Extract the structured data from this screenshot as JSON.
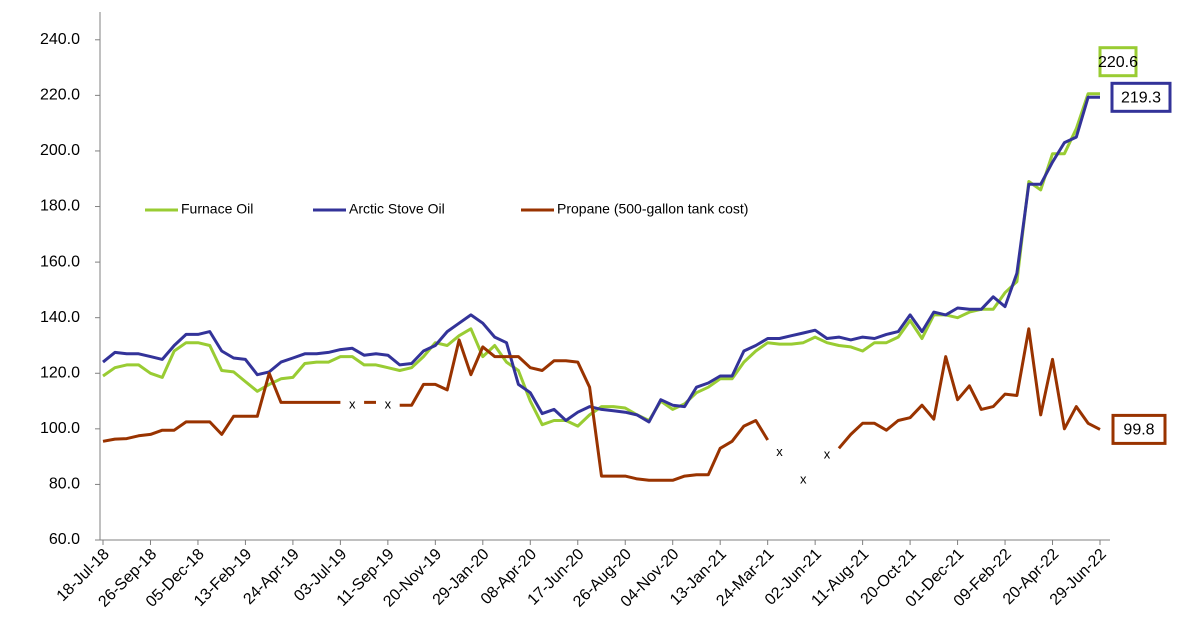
{
  "chart_data": {
    "type": "line",
    "categories": [
      "18-Jul-18",
      null,
      null,
      null,
      "26-Sep-18",
      null,
      null,
      null,
      "05-Dec-18",
      null,
      null,
      null,
      "13-Feb-19",
      null,
      null,
      null,
      "24-Apr-19",
      null,
      null,
      null,
      "03-Jul-19",
      null,
      null,
      null,
      "11-Sep-19",
      null,
      null,
      null,
      "20-Nov-19",
      null,
      null,
      null,
      "29-Jan-20",
      null,
      null,
      null,
      "08-Apr-20",
      null,
      null,
      null,
      "17-Jun-20",
      null,
      null,
      null,
      "26-Aug-20",
      null,
      null,
      null,
      "04-Nov-20",
      null,
      null,
      null,
      "13-Jan-21",
      null,
      null,
      null,
      "24-Mar-21",
      null,
      null,
      null,
      "02-Jun-21",
      null,
      null,
      null,
      "11-Aug-21",
      null,
      null,
      null,
      "20-Oct-21",
      null,
      null,
      null,
      "01-Dec-21",
      null,
      null,
      null,
      "09-Feb-22",
      null,
      null,
      null,
      "20-Apr-22",
      null,
      null,
      null,
      "29-Jun-22"
    ],
    "series": [
      {
        "name": "Furnace Oil",
        "color": "#99cc33",
        "values": [
          119,
          122,
          123,
          123,
          120,
          118.5,
          128,
          131,
          131,
          130,
          121,
          120.5,
          117,
          113.5,
          116,
          118,
          118.5,
          123.5,
          124,
          124,
          126,
          126,
          123,
          123,
          122,
          121,
          122,
          126,
          131,
          130,
          133.5,
          136,
          126,
          130,
          124,
          121,
          110,
          101.5,
          103,
          103,
          101,
          105,
          108,
          108,
          107.5,
          105,
          103,
          110,
          107,
          109,
          113,
          115,
          118,
          118,
          124,
          128,
          131,
          130.5,
          130.5,
          131,
          133,
          131,
          130,
          129.5,
          128,
          131,
          131,
          133,
          139,
          132.5,
          141,
          141,
          140,
          142,
          143,
          143,
          149,
          153,
          189,
          186,
          199,
          199,
          208,
          220.6,
          220.6
        ]
      },
      {
        "name": "Arctic Stove Oil",
        "color": "#333399",
        "values": [
          124,
          127.5,
          127,
          127,
          126,
          125,
          130,
          134,
          134,
          135,
          128,
          125.5,
          125,
          119.5,
          120.5,
          124,
          125.5,
          127,
          127,
          127.5,
          128.5,
          129,
          126.5,
          127,
          126.5,
          123,
          123.5,
          128,
          130,
          135,
          138,
          141,
          138,
          133,
          131,
          116,
          113,
          105.5,
          107,
          103,
          106,
          108,
          107,
          106.5,
          106,
          105,
          102.5,
          110.5,
          108.5,
          108,
          115,
          116.5,
          119,
          119,
          128,
          130,
          132.5,
          132.5,
          133.5,
          134.5,
          135.5,
          132.5,
          133,
          132,
          133,
          132.5,
          134,
          135,
          141,
          135,
          142,
          141,
          143.5,
          143,
          143,
          147.5,
          144,
          156,
          188,
          188,
          196,
          203,
          205,
          219.3,
          219.3
        ]
      },
      {
        "name": "Propane (500-gallon tank cost)",
        "color": "#993300",
        "values": [
          95.5,
          96.3,
          96.5,
          97.5,
          98,
          99.5,
          99.5,
          102.5,
          102.5,
          102.5,
          98,
          104.5,
          104.5,
          104.5,
          120,
          109.5,
          109.5,
          109.5,
          109.5,
          109.5,
          109.5,
          null,
          109.5,
          109.5,
          null,
          108.5,
          108.5,
          116,
          116,
          114,
          132,
          119.5,
          129.5,
          126,
          126,
          126,
          122,
          121,
          124.5,
          124.5,
          124,
          115,
          83,
          83,
          83,
          82,
          81.5,
          81.5,
          81.5,
          83,
          83.5,
          83.5,
          93,
          95.5,
          101,
          103,
          96,
          null,
          null,
          null,
          null,
          null,
          93,
          98,
          102,
          102,
          99.5,
          103,
          104,
          108.5,
          103.5,
          126,
          110.5,
          115.5,
          107,
          108,
          112.5,
          112,
          136,
          105,
          125,
          100,
          108,
          102,
          99.8
        ]
      }
    ],
    "annotations": [
      {
        "text": "x",
        "index": 21,
        "value": 108.6
      },
      {
        "text": "x",
        "index": 24,
        "value": 108.6
      },
      {
        "text": "x",
        "index": 57,
        "value": 91.5
      },
      {
        "text": "x",
        "index": 59,
        "value": 81.5
      },
      {
        "text": "x",
        "index": 61,
        "value": 90.5
      }
    ],
    "ylim": [
      60,
      250
    ],
    "yticks": [
      {
        "value": 60,
        "label": "60.0"
      },
      {
        "value": 80,
        "label": "80.0"
      },
      {
        "value": 100,
        "label": "100.0"
      },
      {
        "value": 120,
        "label": "120.0"
      },
      {
        "value": 140,
        "label": "140.0"
      },
      {
        "value": 160,
        "label": "160.0"
      },
      {
        "value": 180,
        "label": "180.0"
      },
      {
        "value": 200,
        "label": "200.0"
      },
      {
        "value": 220,
        "label": "220.0"
      },
      {
        "value": 240,
        "label": "240.0"
      }
    ],
    "grid": false,
    "legend": "center-left",
    "end_labels": true
  }
}
